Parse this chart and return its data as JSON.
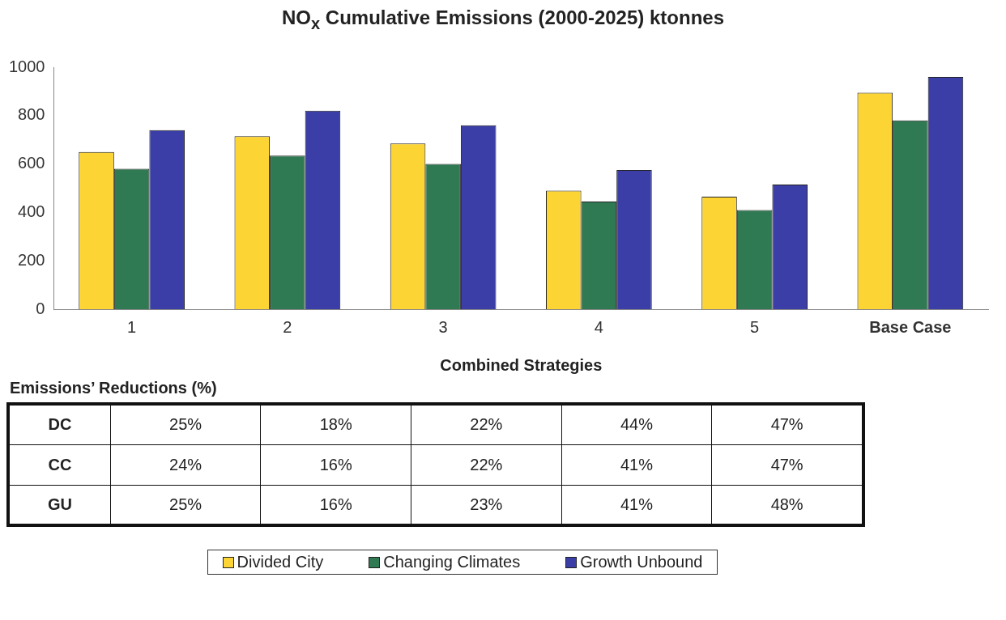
{
  "chart_data": {
    "type": "bar",
    "title": "NO$_{x}$ Cumulative Emissions (2000-2025) ktonnes",
    "xlabel": "Combined Strategies",
    "categories": [
      "1",
      "2",
      "3",
      "4",
      "5",
      "Base Case"
    ],
    "series": [
      {
        "name": "Divided City",
        "color": "#fcd535",
        "values": [
          650,
          715,
          685,
          490,
          465,
          895
        ]
      },
      {
        "name": "Changing Climates",
        "color": "#2f7a52",
        "values": [
          580,
          635,
          600,
          445,
          410,
          780
        ]
      },
      {
        "name": "Growth Unbound",
        "color": "#3a3ea6",
        "values": [
          740,
          820,
          760,
          575,
          515,
          960
        ]
      }
    ],
    "ylim": [
      0,
      1000
    ],
    "yticks": [
      0,
      200,
      400,
      600,
      800,
      1000
    ],
    "grid": false,
    "legend": "bottom",
    "annotations": [
      "Emissions’ Reductions (%)",
      "DC",
      "25%",
      "18%",
      "22%",
      "44%",
      "47%",
      "CC",
      "24%",
      "16%",
      "22%",
      "41%",
      "47%",
      "GU",
      "25%",
      "16%",
      "23%",
      "41%",
      "48%"
    ]
  }
}
